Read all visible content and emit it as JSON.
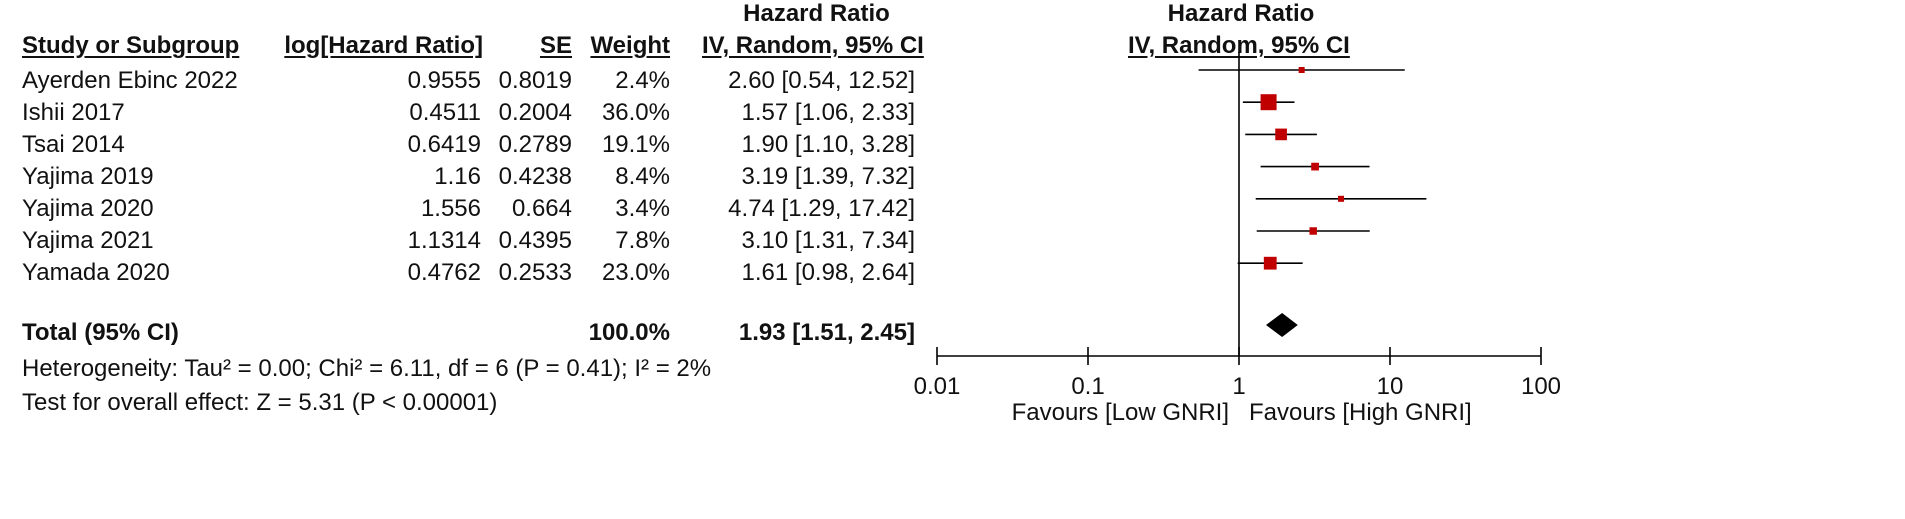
{
  "headers": {
    "group_title": "Hazard Ratio",
    "study": "Study or Subgroup",
    "log_hr": "log[Hazard Ratio]",
    "se": "SE",
    "weight": "Weight",
    "ci_method": "IV, Random, 95% CI",
    "plot_title": "Hazard Ratio",
    "plot_method": "IV, Random, 95% CI"
  },
  "studies": [
    {
      "name": "Ayerden Ebinc 2022",
      "log_hr": "0.9555",
      "se": "0.8019",
      "weight": "2.4%",
      "ci_text": "2.60 [0.54, 12.52]"
    },
    {
      "name": "Ishii 2017",
      "log_hr": "0.4511",
      "se": "0.2004",
      "weight": "36.0%",
      "ci_text": "1.57 [1.06, 2.33]"
    },
    {
      "name": "Tsai 2014",
      "log_hr": "0.6419",
      "se": "0.2789",
      "weight": "19.1%",
      "ci_text": "1.90 [1.10, 3.28]"
    },
    {
      "name": "Yajima 2019",
      "log_hr": "1.16",
      "se": "0.4238",
      "weight": "8.4%",
      "ci_text": "3.19 [1.39, 7.32]"
    },
    {
      "name": "Yajima 2020",
      "log_hr": "1.556",
      "se": "0.664",
      "weight": "3.4%",
      "ci_text": "4.74 [1.29, 17.42]"
    },
    {
      "name": "Yajima 2021",
      "log_hr": "1.1314",
      "se": "0.4395",
      "weight": "7.8%",
      "ci_text": "3.10 [1.31, 7.34]"
    },
    {
      "name": "Yamada 2020",
      "log_hr": "0.4762",
      "se": "0.2533",
      "weight": "23.0%",
      "ci_text": "1.61 [0.98, 2.64]"
    }
  ],
  "total": {
    "label": "Total (95% CI)",
    "weight": "100.0%",
    "ci_text": "1.93 [1.51, 2.45]"
  },
  "heterogeneity": "Heterogeneity: Tau² = 0.00; Chi² = 6.11, df = 6 (P = 0.41); I² = 2%",
  "overall_effect": "Test for overall effect: Z = 5.31 (P < 0.00001)",
  "axis": {
    "favours_left": "Favours [Low GNRI]",
    "favours_right": "Favours [High GNRI]"
  },
  "chart_data": {
    "type": "forest",
    "scale": "log",
    "xlim": [
      0.01,
      100
    ],
    "ticks": [
      0.01,
      0.1,
      1,
      10,
      100
    ],
    "tick_labels": [
      "0.01",
      "0.1",
      "1",
      "10",
      "100"
    ],
    "null_line": 1,
    "studies": [
      {
        "name": "Ayerden Ebinc 2022",
        "hr": 2.6,
        "lo": 0.54,
        "hi": 12.52,
        "weight": 2.4
      },
      {
        "name": "Ishii 2017",
        "hr": 1.57,
        "lo": 1.06,
        "hi": 2.33,
        "weight": 36.0
      },
      {
        "name": "Tsai 2014",
        "hr": 1.9,
        "lo": 1.1,
        "hi": 3.28,
        "weight": 19.1
      },
      {
        "name": "Yajima 2019",
        "hr": 3.19,
        "lo": 1.39,
        "hi": 7.32,
        "weight": 8.4
      },
      {
        "name": "Yajima 2020",
        "hr": 4.74,
        "lo": 1.29,
        "hi": 17.42,
        "weight": 3.4
      },
      {
        "name": "Yajima 2021",
        "hr": 3.1,
        "lo": 1.31,
        "hi": 7.34,
        "weight": 7.8
      },
      {
        "name": "Yamada 2020",
        "hr": 1.61,
        "lo": 0.98,
        "hi": 2.64,
        "weight": 23.0
      }
    ],
    "pooled": {
      "hr": 1.93,
      "lo": 1.51,
      "hi": 2.45
    },
    "colors": {
      "study_marker": "#c00000",
      "line": "#000000",
      "diamond": "#000000"
    }
  }
}
